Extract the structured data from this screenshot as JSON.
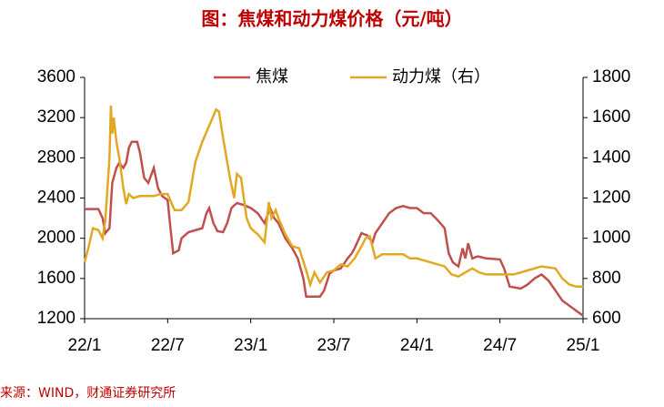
{
  "chart_data": {
    "type": "line",
    "title": "图：焦煤和动力煤价格（元/吨）",
    "source": "来源：WIND，财通证券研究所",
    "xlim": [
      0,
      36
    ],
    "xticks": [
      {
        "value": 0,
        "label": "22/1"
      },
      {
        "value": 6,
        "label": "22/7"
      },
      {
        "value": 12,
        "label": "23/1"
      },
      {
        "value": 18,
        "label": "23/7"
      },
      {
        "value": 24,
        "label": "24/1"
      },
      {
        "value": 30,
        "label": "24/7"
      },
      {
        "value": 36,
        "label": "25/1"
      }
    ],
    "ylim": [
      1200,
      3600
    ],
    "yticks": [
      1200,
      1600,
      2000,
      2400,
      2800,
      3200,
      3600
    ],
    "y2lim": [
      600,
      1800
    ],
    "y2ticks": [
      600,
      800,
      1000,
      1200,
      1400,
      1600,
      1800
    ],
    "series": [
      {
        "name": "焦煤",
        "color": "#c0504d",
        "x": [
          0,
          1,
          1.3,
          1.5,
          1.8,
          2,
          2.3,
          2.5,
          2.8,
          3,
          3.2,
          3.4,
          3.8,
          4,
          4.3,
          4.6,
          5,
          5.3,
          5.6,
          6,
          6.2,
          6.4,
          6.8,
          7,
          7.5,
          8,
          8.5,
          8.8,
          9,
          9.3,
          9.6,
          10,
          10.3,
          10.6,
          11,
          11.5,
          12,
          12.5,
          13,
          13.4,
          13.7,
          14,
          14.5,
          15,
          15.4,
          15.8,
          16,
          16.5,
          17,
          17.3,
          17.7,
          18,
          18.5,
          19,
          19.3,
          19.5,
          20,
          20.4,
          20.8,
          21,
          21.5,
          22,
          22.5,
          23,
          23.5,
          24,
          24.5,
          25,
          25.5,
          26,
          26.3,
          26.6,
          27,
          27.3,
          27.5,
          27.7,
          28,
          28.4,
          29,
          30,
          30.3,
          30.7,
          31.5,
          32,
          32.5,
          33,
          33.5,
          34,
          34.5,
          35,
          35.5,
          36
        ],
        "values": [
          2290,
          2290,
          2200,
          2050,
          2100,
          2550,
          2700,
          2750,
          2700,
          2750,
          2900,
          2960,
          2960,
          2850,
          2600,
          2550,
          2700,
          2500,
          2420,
          2380,
          2100,
          1850,
          1880,
          2000,
          2060,
          2080,
          2100,
          2250,
          2300,
          2150,
          2070,
          2060,
          2150,
          2300,
          2350,
          2330,
          2300,
          2250,
          2150,
          2300,
          2200,
          2150,
          2000,
          1900,
          1800,
          1600,
          1420,
          1420,
          1420,
          1480,
          1650,
          1680,
          1700,
          1800,
          1850,
          1900,
          2050,
          2030,
          1960,
          2050,
          2150,
          2250,
          2300,
          2320,
          2300,
          2300,
          2250,
          2250,
          2180,
          2100,
          1850,
          1760,
          1720,
          1900,
          1800,
          1950,
          1800,
          1820,
          1800,
          1790,
          1700,
          1520,
          1500,
          1540,
          1600,
          1640,
          1580,
          1480,
          1380,
          1330,
          1280,
          1230
        ]
      },
      {
        "name": "动力煤（右）",
        "color": "#e3a823",
        "axis": "y2",
        "x": [
          0,
          0.3,
          0.6,
          1,
          1.3,
          1.5,
          1.8,
          1.9,
          2,
          2.1,
          2.3,
          2.5,
          2.8,
          3,
          3.2,
          3.5,
          4,
          5,
          5.5,
          6,
          6.5,
          7,
          7.5,
          8,
          8.5,
          9,
          9.5,
          9.7,
          10,
          10.5,
          10.8,
          11,
          11.3,
          11.7,
          12,
          12.5,
          13,
          13.3,
          13.5,
          13.8,
          14,
          14.5,
          15,
          15.5,
          16,
          16.3,
          16.6,
          17,
          17.5,
          18,
          18.5,
          19,
          19.5,
          20,
          20.3,
          20.6,
          21,
          21.5,
          22,
          23,
          23.5,
          24,
          25,
          25.5,
          26,
          26.5,
          27,
          27.5,
          28,
          28.5,
          29,
          30,
          31,
          32,
          33,
          34,
          34.5,
          35,
          35.5,
          36
        ],
        "values": [
          880,
          960,
          1050,
          1040,
          1000,
          1090,
          1400,
          1660,
          1520,
          1600,
          1480,
          1400,
          1250,
          1170,
          1220,
          1200,
          1210,
          1210,
          1220,
          1220,
          1140,
          1140,
          1180,
          1380,
          1480,
          1560,
          1640,
          1630,
          1500,
          1300,
          1200,
          1320,
          1300,
          1100,
          1050,
          1020,
          980,
          1180,
          1100,
          1140,
          1100,
          1020,
          960,
          950,
          840,
          770,
          830,
          780,
          830,
          840,
          870,
          860,
          900,
          960,
          1000,
          1010,
          900,
          920,
          920,
          920,
          900,
          900,
          880,
          870,
          860,
          820,
          810,
          830,
          850,
          830,
          820,
          820,
          820,
          840,
          860,
          850,
          800,
          770,
          760,
          760
        ]
      }
    ]
  }
}
